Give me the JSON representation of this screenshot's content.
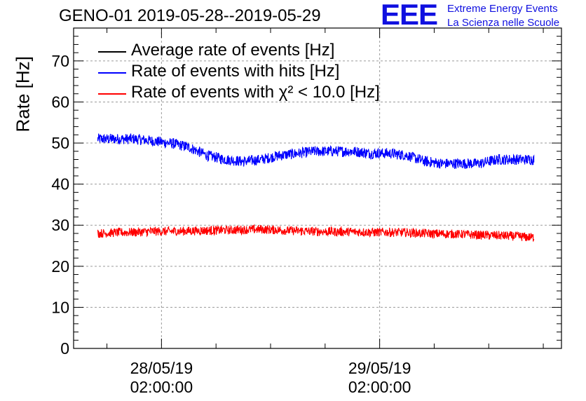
{
  "header": {
    "title": "GENO-01 2019-05-28--2019-05-29"
  },
  "logo": {
    "mark": "EEE",
    "line1": "Extreme Energy Events",
    "line2": "La Scienza nelle Scuole"
  },
  "chart_data": {
    "type": "line",
    "title": "GENO-01 2019-05-28--2019-05-29",
    "ylabel": "Rate [Hz]",
    "xlabel": "",
    "ylim": [
      0,
      78
    ],
    "yticks": [
      0,
      10,
      20,
      30,
      40,
      50,
      60,
      70
    ],
    "ytick_labels": [
      "0",
      "10",
      "20",
      "30",
      "40",
      "50",
      "60",
      "70"
    ],
    "xlim": [
      "2019-05-27 16:20:00",
      "2019-05-29 22:00:00"
    ],
    "xticks": [
      {
        "x": "2019-05-28 02:00:00",
        "label1": "28/05/19",
        "label2": "02:00:00"
      },
      {
        "x": "2019-05-29 02:00:00",
        "label1": "29/05/19",
        "label2": "02:00:00"
      }
    ],
    "grid": true,
    "legend_position": "top-left",
    "series": [
      {
        "name": "Average rate of events [Hz]",
        "color": "#000000",
        "x": [],
        "values": []
      },
      {
        "name": "Rate of events with hits [Hz]",
        "color": "#0000ff",
        "x": [
          "2019-05-27 19:00",
          "2019-05-27 21:00",
          "2019-05-27 23:00",
          "2019-05-28 01:00",
          "2019-05-28 03:00",
          "2019-05-28 05:00",
          "2019-05-28 07:00",
          "2019-05-28 09:00",
          "2019-05-28 11:00",
          "2019-05-28 13:00",
          "2019-05-28 15:00",
          "2019-05-28 17:00",
          "2019-05-28 19:00",
          "2019-05-28 21:00",
          "2019-05-28 23:00",
          "2019-05-29 01:00",
          "2019-05-29 03:00",
          "2019-05-29 05:00",
          "2019-05-29 07:00",
          "2019-05-29 09:00",
          "2019-05-29 11:00",
          "2019-05-29 13:00",
          "2019-05-29 15:00",
          "2019-05-29 17:00",
          "2019-05-29 19:00"
        ],
        "values": [
          51,
          51,
          51,
          50.5,
          50,
          49,
          47,
          46,
          45.5,
          46,
          47,
          47.5,
          48,
          48,
          48,
          47.5,
          47.5,
          47,
          45.5,
          45,
          45,
          45,
          46,
          46,
          46
        ]
      },
      {
        "name": "Rate of events with χ² < 10.0 [Hz]",
        "color": "#ff0000",
        "x": [
          "2019-05-27 19:00",
          "2019-05-27 21:00",
          "2019-05-27 23:00",
          "2019-05-28 01:00",
          "2019-05-28 03:00",
          "2019-05-28 05:00",
          "2019-05-28 07:00",
          "2019-05-28 09:00",
          "2019-05-28 11:00",
          "2019-05-28 13:00",
          "2019-05-28 15:00",
          "2019-05-28 17:00",
          "2019-05-28 19:00",
          "2019-05-28 21:00",
          "2019-05-28 23:00",
          "2019-05-29 01:00",
          "2019-05-29 03:00",
          "2019-05-29 05:00",
          "2019-05-29 07:00",
          "2019-05-29 09:00",
          "2019-05-29 11:00",
          "2019-05-29 13:00",
          "2019-05-29 15:00",
          "2019-05-29 17:00",
          "2019-05-29 19:00"
        ],
        "values": [
          28,
          28.2,
          28.3,
          28.5,
          28.5,
          28.6,
          28.7,
          28.8,
          28.9,
          29,
          28.8,
          28.6,
          28.5,
          28.4,
          28.4,
          28.3,
          28.3,
          28.2,
          28,
          27.9,
          27.8,
          27.6,
          27.5,
          27.3,
          27
        ]
      }
    ]
  }
}
